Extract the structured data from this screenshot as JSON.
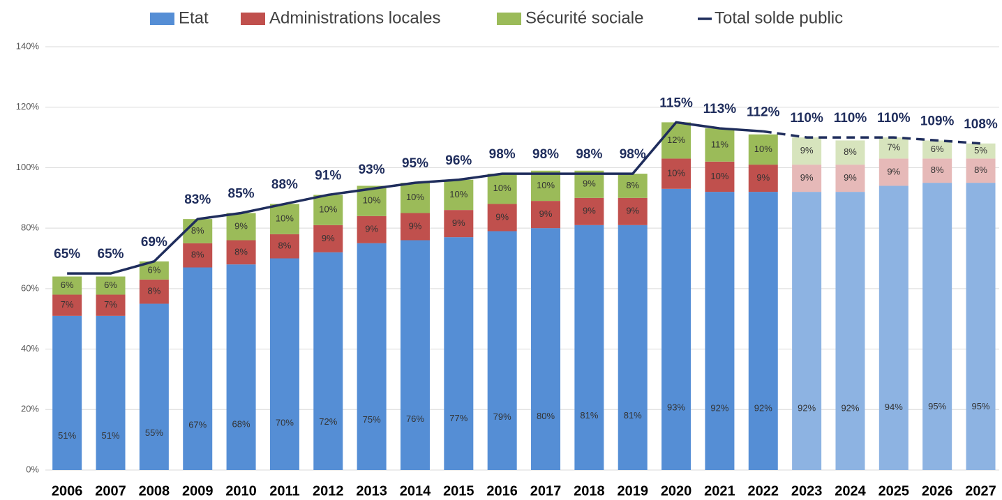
{
  "chart_data": {
    "type": "bar",
    "stacked": true,
    "categories": [
      "2006",
      "2007",
      "2008",
      "2009",
      "2010",
      "2011",
      "2012",
      "2013",
      "2014",
      "2015",
      "2016",
      "2017",
      "2018",
      "2019",
      "2020",
      "2021",
      "2022",
      "2023",
      "2024",
      "2025",
      "2026",
      "2027"
    ],
    "forecast_from": "2023",
    "series": [
      {
        "name": "Etat",
        "color": "#558ed5",
        "forecast_color": "#8db3e2",
        "values": [
          51,
          51,
          55,
          67,
          68,
          70,
          72,
          75,
          76,
          77,
          79,
          80,
          81,
          81,
          93,
          92,
          92,
          92,
          92,
          94,
          95,
          95
        ],
        "value_labels": [
          "51%",
          "51%",
          "55%",
          "67%",
          "68%",
          "70%",
          "72%",
          "75%",
          "76%",
          "77%",
          "79%",
          "80%",
          "81%",
          "81%",
          "93%",
          "92%",
          "92%",
          "92%",
          "92%",
          "94%",
          "95%",
          "95%"
        ]
      },
      {
        "name": "Administrations locales",
        "color": "#c0504d",
        "forecast_color": "#e6b9b8",
        "values": [
          7,
          7,
          8,
          8,
          8,
          8,
          9,
          9,
          9,
          9,
          9,
          9,
          9,
          9,
          10,
          10,
          9,
          9,
          9,
          9,
          8,
          8
        ],
        "value_labels": [
          "7%",
          "7%",
          "8%",
          "8%",
          "8%",
          "8%",
          "9%",
          "9%",
          "9%",
          "9%",
          "9%",
          "9%",
          "9%",
          "9%",
          "10%",
          "10%",
          "9%",
          "9%",
          "9%",
          "9%",
          "8%",
          "8%"
        ]
      },
      {
        "name": "Sécurité sociale",
        "color": "#9bbb59",
        "forecast_color": "#d7e4bd",
        "values": [
          6,
          6,
          6,
          8,
          9,
          10,
          10,
          10,
          10,
          10,
          10,
          10,
          9,
          8,
          12,
          11,
          10,
          9,
          8,
          7,
          6,
          5
        ],
        "value_labels": [
          "6%",
          "6%",
          "6%",
          "8%",
          "9%",
          "10%",
          "10%",
          "10%",
          "10%",
          "10%",
          "10%",
          "10%",
          "9%",
          "8%",
          "12%",
          "11%",
          "10%",
          "9%",
          "8%",
          "7%",
          "6%",
          "5%"
        ]
      },
      {
        "name": "Total solde public",
        "type": "line",
        "color": "#1f2d5c",
        "values": [
          65,
          65,
          69,
          83,
          85,
          88,
          91,
          93,
          95,
          96,
          98,
          98,
          98,
          98,
          115,
          113,
          112,
          110,
          110,
          110,
          109,
          108
        ],
        "value_labels": [
          "65%",
          "65%",
          "69%",
          "83%",
          "85%",
          "88%",
          "91%",
          "93%",
          "95%",
          "96%",
          "98%",
          "98%",
          "98%",
          "98%",
          "115%",
          "113%",
          "112%",
          "110%",
          "110%",
          "110%",
          "109%",
          "108%"
        ]
      }
    ],
    "ylim": [
      0,
      140
    ],
    "yticks": [
      {
        "value": 0,
        "label": "0%"
      },
      {
        "value": 20,
        "label": "20%"
      },
      {
        "value": 40,
        "label": "40%"
      },
      {
        "value": 60,
        "label": "60%"
      },
      {
        "value": 80,
        "label": "80%"
      },
      {
        "value": 100,
        "label": "100%"
      },
      {
        "value": 120,
        "label": "120%"
      },
      {
        "value": 140,
        "label": "140%"
      }
    ],
    "grid": true,
    "legend": "top"
  }
}
